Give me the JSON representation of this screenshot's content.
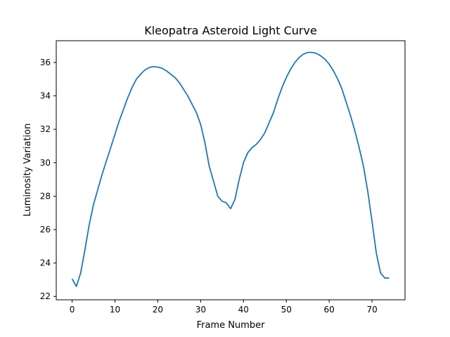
{
  "chart_data": {
    "type": "line",
    "title": "Kleopatra Asteroid Light Curve",
    "xlabel": "Frame Number",
    "ylabel": "Luminosity Variation",
    "xlim": [
      -3.7,
      77.7
    ],
    "ylim": [
      21.8,
      37.3
    ],
    "xticks": [
      0,
      10,
      20,
      30,
      40,
      50,
      60,
      70
    ],
    "yticks": [
      22,
      24,
      26,
      28,
      30,
      32,
      34,
      36
    ],
    "grid": false,
    "legend": "none",
    "series": [
      {
        "color": "#1f77b4",
        "x": [
          0,
          1,
          2,
          3,
          4,
          5,
          6,
          7,
          8,
          9,
          10,
          11,
          12,
          13,
          14,
          15,
          16,
          17,
          18,
          19,
          20,
          21,
          22,
          23,
          24,
          25,
          26,
          27,
          28,
          29,
          30,
          31,
          32,
          33,
          34,
          35,
          36,
          37,
          38,
          39,
          40,
          41,
          42,
          43,
          44,
          45,
          46,
          47,
          48,
          49,
          50,
          51,
          52,
          53,
          54,
          55,
          56,
          57,
          58,
          59,
          60,
          61,
          62,
          63,
          64,
          65,
          66,
          67,
          68,
          69,
          70,
          71,
          72,
          73,
          74
        ],
        "values": [
          23.05,
          22.6,
          23.4,
          24.8,
          26.3,
          27.5,
          28.4,
          29.3,
          30.1,
          30.9,
          31.7,
          32.5,
          33.2,
          33.9,
          34.5,
          35.0,
          35.3,
          35.55,
          35.7,
          35.75,
          35.72,
          35.65,
          35.5,
          35.3,
          35.1,
          34.8,
          34.4,
          34.0,
          33.5,
          33.0,
          32.3,
          31.2,
          29.8,
          28.9,
          28.0,
          27.7,
          27.6,
          27.25,
          27.8,
          29.0,
          30.0,
          30.6,
          30.9,
          31.1,
          31.4,
          31.8,
          32.4,
          33.0,
          33.8,
          34.5,
          35.1,
          35.6,
          36.0,
          36.3,
          36.5,
          36.6,
          36.6,
          36.55,
          36.4,
          36.2,
          35.9,
          35.5,
          35.0,
          34.4,
          33.6,
          32.8,
          31.9,
          30.9,
          29.8,
          28.3,
          26.5,
          24.6,
          23.4,
          23.1,
          23.1
        ]
      }
    ]
  }
}
